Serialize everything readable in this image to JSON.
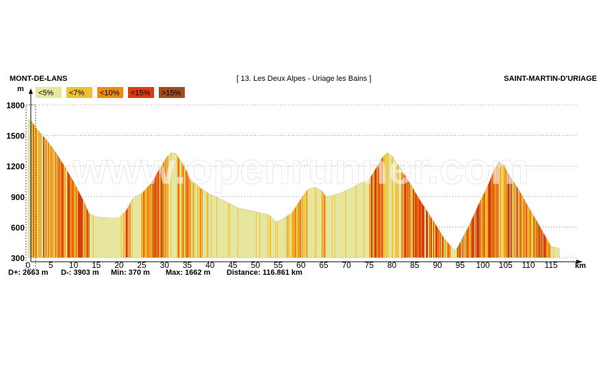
{
  "header": {
    "start_town": "MONT-DE-LANS",
    "route": "[ 13. Les Deux Alpes - Uriage les Bains ]",
    "end_town": "SAINT-MARTIN-D'URIAGE"
  },
  "watermark": "www.openrunner.com",
  "stats": {
    "d_plus": "D+: 2663 m",
    "d_minus": "D-: 3903 m",
    "min": "Min: 370 m",
    "max": "Max: 1662 m",
    "distance": "Distance: 116.861 km"
  },
  "colors": {
    "lt5": "#e6e69e",
    "lt7": "#efc032",
    "lt10": "#ee8a12",
    "lt15": "#dd3a0e",
    "gt15": "#a34a1e"
  },
  "chart_data": {
    "type": "area",
    "title": "[ 13. Les Deux Alpes - Uriage les Bains ]",
    "xlabel": "km",
    "ylabel": "m",
    "xlim": [
      0,
      121
    ],
    "ylim": [
      300,
      1800
    ],
    "x_ticks": [
      0,
      5,
      10,
      15,
      20,
      25,
      30,
      35,
      40,
      45,
      50,
      55,
      60,
      65,
      70,
      75,
      80,
      85,
      90,
      95,
      100,
      105,
      110,
      115
    ],
    "y_ticks": [
      300,
      600,
      900,
      1200,
      1500,
      1800
    ],
    "grid": "horizontal dotted",
    "legend": [
      {
        "label": "<5%",
        "key": "lt5"
      },
      {
        "label": "<7%",
        "key": "lt7"
      },
      {
        "label": "<10%",
        "key": "lt10"
      },
      {
        "label": "<15%",
        "key": "lt15"
      },
      {
        "label": ">15%",
        "key": "gt15"
      }
    ],
    "x": [
      0,
      0.8,
      2,
      4,
      6,
      8,
      10,
      12,
      13.5,
      15,
      18,
      20,
      21.5,
      23,
      25,
      27,
      29,
      30.5,
      31.5,
      32.5,
      34,
      36,
      38,
      40,
      43,
      46,
      49,
      51,
      53,
      54.5,
      56,
      58,
      60,
      61.5,
      63,
      64.5,
      65.5,
      67,
      69,
      71,
      73,
      75,
      76.5,
      78,
      79,
      80,
      82,
      84,
      86,
      88,
      90,
      91.5,
      93,
      94,
      95,
      97,
      99,
      101,
      102.5,
      103.5,
      104.5,
      106,
      108,
      110,
      112,
      114,
      115,
      116.8
    ],
    "elevation": [
      1660,
      1640,
      1560,
      1460,
      1340,
      1200,
      1050,
      880,
      730,
      700,
      690,
      690,
      760,
      880,
      930,
      1030,
      1180,
      1290,
      1330,
      1320,
      1220,
      1060,
      980,
      920,
      860,
      790,
      760,
      740,
      720,
      650,
      680,
      740,
      880,
      970,
      990,
      960,
      900,
      910,
      940,
      980,
      1030,
      1070,
      1180,
      1290,
      1330,
      1300,
      1170,
      1030,
      880,
      740,
      600,
      490,
      410,
      370,
      450,
      620,
      820,
      1000,
      1170,
      1240,
      1210,
      1100,
      960,
      800,
      650,
      490,
      410,
      390
    ]
  }
}
